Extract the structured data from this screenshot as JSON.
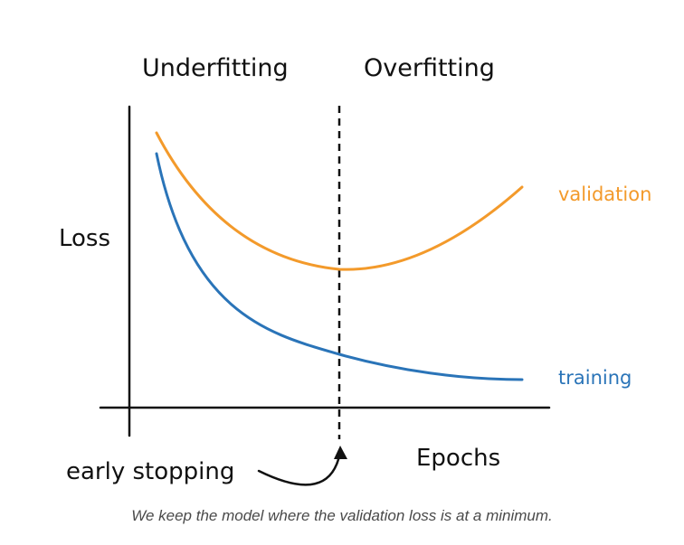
{
  "diagram": {
    "region_labels": {
      "left": "Underfitting",
      "right": "Overfitting"
    },
    "y_axis_label": "Loss",
    "x_axis_label": "Epochs",
    "curves": {
      "validation": {
        "label": "validation",
        "color": "#f39a2b"
      },
      "training": {
        "label": "training",
        "color": "#2a74b8"
      }
    },
    "marker": {
      "label": "early stopping"
    },
    "colors": {
      "axis": "#111111",
      "text": "#111111"
    }
  },
  "caption": "We keep the model where the validation loss is at a minimum."
}
